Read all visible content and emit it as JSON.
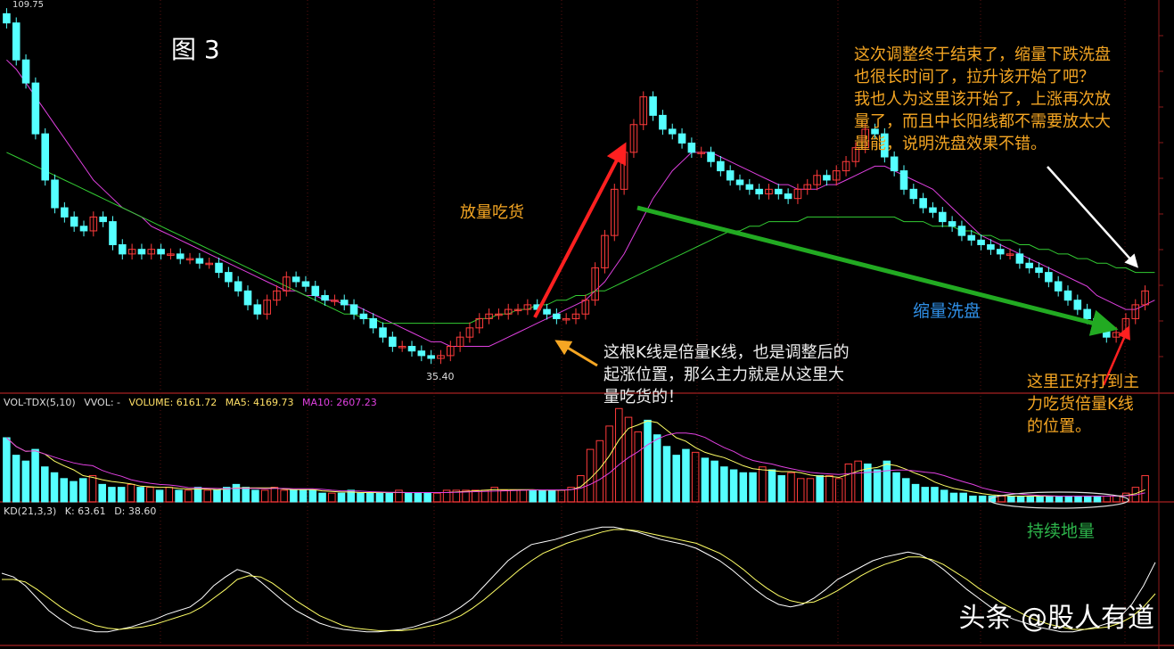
{
  "figure_label": "图 3",
  "chart_data": [
    {
      "type": "candlestick",
      "price_high_label": "109.75",
      "price_low_label": "35.40",
      "series": [
        {
          "name": "close",
          "values": [
            108,
            100,
            95,
            84,
            74,
            68,
            66,
            64,
            63,
            66,
            65,
            60,
            58,
            59,
            58,
            59,
            58,
            58,
            57,
            57,
            56,
            56,
            54,
            52,
            50,
            47,
            45,
            48,
            50,
            53,
            52,
            51,
            49,
            48,
            48,
            47,
            45,
            44,
            42,
            40,
            38,
            38,
            37,
            36,
            35.4,
            36,
            38,
            40,
            42,
            44,
            45,
            45,
            46,
            46,
            47,
            46,
            45,
            44,
            44,
            45,
            48,
            55,
            62,
            72,
            80,
            86,
            92,
            88,
            85,
            84,
            82,
            80,
            80,
            78,
            76,
            74,
            73,
            72,
            71,
            72,
            71,
            70,
            72,
            73,
            75,
            74,
            76,
            78,
            81,
            85,
            84,
            79,
            76,
            72,
            70,
            68,
            67,
            65,
            64,
            62,
            61,
            60,
            59,
            58,
            58,
            56,
            55,
            54,
            52,
            50,
            48,
            46,
            44,
            42,
            40,
            41,
            44,
            47,
            50
          ]
        },
        {
          "name": "MA10",
          "values": [
            100,
            98,
            95,
            92,
            89,
            86,
            83,
            80,
            77,
            74,
            72,
            70,
            68,
            67,
            66,
            64,
            63,
            62,
            61,
            60,
            59,
            58,
            57,
            56,
            55,
            54,
            53,
            52,
            51,
            50,
            50,
            49,
            49,
            48,
            48,
            47,
            47,
            46,
            45,
            44,
            43,
            42,
            41,
            40,
            39,
            39,
            38,
            38,
            38,
            38,
            38,
            39,
            40,
            41,
            42,
            43,
            44,
            45,
            46,
            47,
            48,
            50,
            52,
            55,
            58,
            62,
            66,
            70,
            73,
            76,
            78,
            80,
            80,
            80,
            79,
            78,
            77,
            76,
            75,
            74,
            73,
            73,
            72,
            72,
            72,
            73,
            73,
            74,
            75,
            76,
            77,
            77,
            76,
            75,
            74,
            73,
            72,
            70,
            68,
            66,
            64,
            62,
            61,
            60,
            59,
            58,
            57,
            56,
            55,
            54,
            53,
            52,
            51,
            49,
            48,
            47,
            46,
            46,
            47,
            48
          ]
        },
        {
          "name": "MA60",
          "values": [
            80,
            79,
            78,
            77,
            76,
            75,
            74,
            73,
            72,
            71,
            70,
            69,
            68,
            67,
            66,
            65,
            64,
            63,
            62,
            61,
            60,
            59,
            58,
            57,
            56,
            55,
            54,
            53,
            52,
            51,
            50,
            49,
            48,
            47,
            46,
            45,
            45,
            44,
            44,
            43,
            43,
            43,
            43,
            43,
            43,
            43,
            43,
            43,
            43,
            44,
            44,
            45,
            45,
            46,
            46,
            47,
            47,
            48,
            48,
            49,
            49,
            50,
            50,
            51,
            52,
            53,
            54,
            55,
            56,
            57,
            58,
            59,
            60,
            61,
            62,
            63,
            63,
            64,
            64,
            65,
            65,
            65,
            65,
            66,
            66,
            66,
            66,
            66,
            66,
            66,
            66,
            66,
            66,
            65,
            65,
            65,
            64,
            64,
            64,
            63,
            63,
            62,
            62,
            61,
            61,
            60,
            60,
            59,
            59,
            58,
            58,
            57,
            57,
            56,
            56,
            55,
            55,
            54,
            54,
            54
          ]
        }
      ]
    },
    {
      "type": "bar",
      "header": {
        "name": "VOL-TDX(5,10)",
        "vol": "VVOL: -",
        "volume": "VOLUME: 6161.72",
        "ma5": "MA5: 4169.73",
        "ma10": "MA10: 2607.23"
      },
      "values": [
        2.2,
        1.6,
        1.4,
        1.8,
        1.2,
        1.0,
        0.8,
        0.7,
        0.8,
        0.9,
        0.6,
        0.5,
        0.5,
        0.6,
        0.5,
        0.5,
        0.4,
        0.5,
        0.4,
        0.4,
        0.5,
        0.4,
        0.4,
        0.5,
        0.6,
        0.5,
        0.4,
        0.4,
        0.5,
        0.4,
        0.4,
        0.4,
        0.4,
        0.3,
        0.3,
        0.3,
        0.4,
        0.3,
        0.3,
        0.3,
        0.3,
        0.4,
        0.3,
        0.3,
        0.3,
        0.3,
        0.4,
        0.4,
        0.4,
        0.4,
        0.4,
        0.5,
        0.4,
        0.4,
        0.4,
        0.4,
        0.4,
        0.4,
        0.4,
        0.5,
        0.9,
        1.8,
        2.1,
        2.6,
        3.2,
        2.9,
        2.4,
        2.8,
        2.3,
        1.9,
        1.6,
        1.8,
        1.7,
        1.5,
        1.4,
        1.2,
        1.1,
        1.0,
        1.0,
        1.2,
        1.1,
        0.9,
        1.0,
        0.8,
        0.8,
        0.9,
        0.9,
        0.8,
        1.3,
        1.4,
        1.3,
        1.1,
        1.4,
        1.0,
        0.8,
        0.6,
        0.5,
        0.5,
        0.4,
        0.3,
        0.3,
        0.2,
        0.2,
        0.2,
        0.2,
        0.2,
        0.2,
        0.2,
        0.2,
        0.2,
        0.2,
        0.2,
        0.2,
        0.2,
        0.2,
        0.2,
        0.2,
        0.3,
        0.5,
        0.9
      ]
    },
    {
      "type": "line",
      "header": {
        "name": "KD(21,3,3)",
        "k": "K: 63.61",
        "d": "D: 38.60"
      },
      "series": [
        {
          "name": "K",
          "values": [
            55,
            52,
            45,
            35,
            25,
            18,
            12,
            10,
            8,
            8,
            10,
            12,
            15,
            18,
            22,
            25,
            28,
            35,
            45,
            52,
            58,
            55,
            48,
            40,
            32,
            25,
            20,
            15,
            12,
            10,
            9,
            8,
            8,
            9,
            10,
            12,
            15,
            18,
            22,
            28,
            35,
            45,
            55,
            65,
            72,
            78,
            80,
            82,
            85,
            88,
            90,
            92,
            92,
            90,
            88,
            85,
            82,
            80,
            78,
            75,
            70,
            65,
            58,
            50,
            42,
            35,
            30,
            28,
            30,
            35,
            42,
            50,
            55,
            60,
            65,
            68,
            70,
            72,
            70,
            65,
            58,
            50,
            42,
            35,
            28,
            22,
            18,
            15,
            12,
            10,
            8,
            8,
            10,
            12,
            15,
            20,
            30,
            45,
            63.61
          ]
        },
        {
          "name": "D",
          "values": [
            50,
            50,
            48,
            42,
            35,
            28,
            22,
            17,
            13,
            11,
            10,
            11,
            12,
            14,
            17,
            20,
            23,
            28,
            35,
            42,
            50,
            53,
            52,
            47,
            40,
            33,
            27,
            21,
            17,
            13,
            11,
            10,
            9,
            9,
            9,
            10,
            12,
            14,
            17,
            21,
            27,
            34,
            42,
            50,
            58,
            65,
            71,
            75,
            79,
            82,
            85,
            88,
            90,
            90,
            89,
            87,
            85,
            83,
            81,
            79,
            75,
            71,
            65,
            58,
            50,
            43,
            37,
            33,
            31,
            32,
            36,
            41,
            47,
            53,
            58,
            62,
            65,
            68,
            68,
            66,
            62,
            56,
            50,
            43,
            37,
            31,
            26,
            21,
            17,
            14,
            12,
            10,
            10,
            11,
            12,
            15,
            20,
            28,
            38.6
          ]
        }
      ]
    }
  ],
  "annotations": {
    "fangliang": "放量吃货",
    "top_right": "这次调整终于结束了，缩量下跌洗盘\n也很长时间了，拉升该开始了吧？\n我也人为这里该开始了，上涨再次放\n量了，而且中长阳线都不需要放太大\n量能，说明洗盘效果不错。",
    "suoliang": "缩量洗盘",
    "beiliang": "这根K线是倍量K线，也是调整后的\n起涨位置，那么主力就是从这里大\n量吃货的！",
    "dadao": "这里正好打到主\n力吃货倍量K线\n的位置。",
    "chixu": "持续地量"
  },
  "colors": {
    "up": "#ff3b3b",
    "down": "#55ffff",
    "ma10": "#e040e0",
    "ma60": "#33cc33",
    "arrow_red": "#ff2020",
    "arrow_green": "#22aa22",
    "arrow_orange": "#f5a623",
    "k_line": "#ffffff",
    "d_line": "#ffff66"
  },
  "watermark": "头条 @股人有道"
}
